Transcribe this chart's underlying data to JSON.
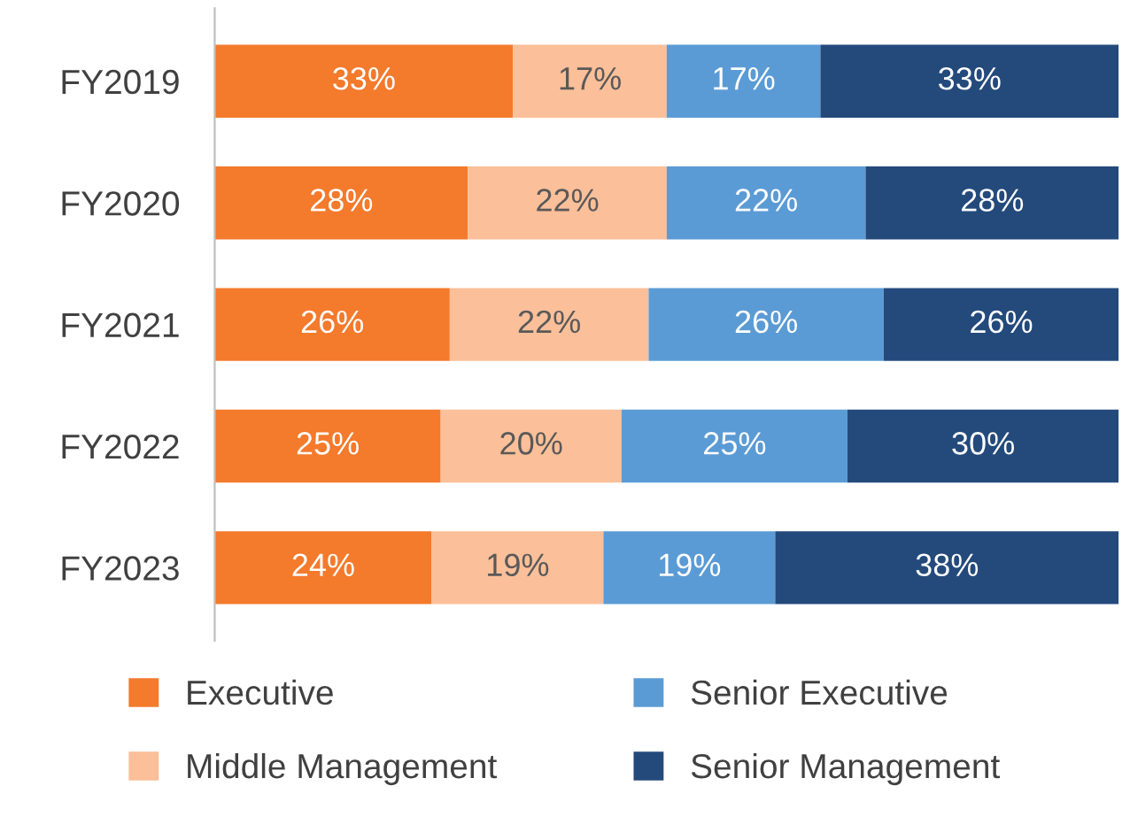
{
  "chart_data": {
    "type": "bar",
    "orientation": "horizontal",
    "stacked": true,
    "categories": [
      "FY2019",
      "FY2020",
      "FY2021",
      "FY2022",
      "FY2023"
    ],
    "series": [
      {
        "name": "Executive",
        "color": "#f47a2c",
        "values": [
          33,
          28,
          26,
          25,
          24
        ],
        "value_labels": [
          "33%",
          "28%",
          "26%",
          "25%",
          "24%"
        ]
      },
      {
        "name": "Middle Management",
        "color": "#fbbf99",
        "values": [
          17,
          22,
          22,
          20,
          19
        ],
        "value_labels": [
          "17%",
          "22%",
          "22%",
          "20%",
          "19%"
        ]
      },
      {
        "name": "Senior Executive",
        "color": "#5b9bd5",
        "values": [
          17,
          22,
          26,
          25,
          19
        ],
        "value_labels": [
          "17%",
          "22%",
          "26%",
          "25%",
          "19%"
        ]
      },
      {
        "name": "Senior Management",
        "color": "#244a7c",
        "values": [
          33,
          28,
          26,
          30,
          38
        ],
        "value_labels": [
          "33%",
          "28%",
          "26%",
          "30%",
          "38%"
        ]
      }
    ],
    "tick_labels": "y",
    "grid": false,
    "legend": "bottom"
  }
}
